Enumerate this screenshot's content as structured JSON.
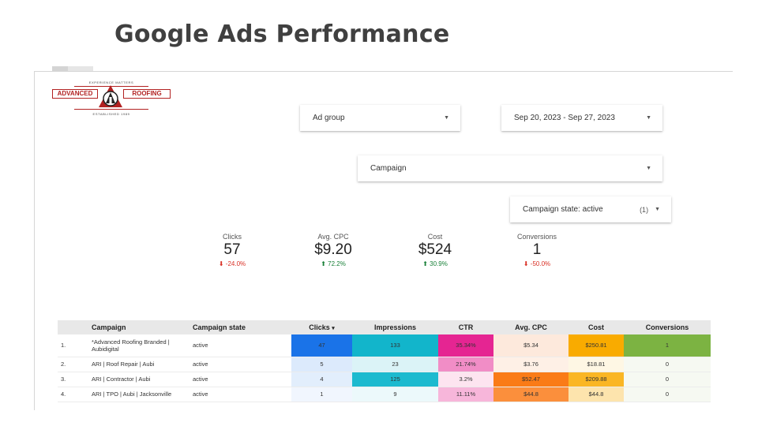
{
  "slide": {
    "title": "Google Ads Performance"
  },
  "logo": {
    "tagline": "EXPERIENCE MATTERS",
    "left_word": "ADVANCED",
    "right_word": "ROOFING",
    "established": "ESTABLISHED 1989",
    "brand_color": "#b22222"
  },
  "controls": {
    "ad_group": {
      "label": "Ad group"
    },
    "date_range": {
      "label": "Sep 20, 2023 - Sep 27, 2023"
    },
    "campaign": {
      "label": "Campaign"
    },
    "campaign_state": {
      "label": "Campaign state: active",
      "count": "(1)"
    }
  },
  "kpis": [
    {
      "label": "Clicks",
      "value": "57",
      "delta": "-24.0%",
      "direction": "down"
    },
    {
      "label": "Avg. CPC",
      "value": "$9.20",
      "delta": "72.2%",
      "direction": "up"
    },
    {
      "label": "Cost",
      "value": "$524",
      "delta": "30.9%",
      "direction": "up"
    },
    {
      "label": "Conversions",
      "value": "1",
      "delta": "-50.0%",
      "direction": "down"
    }
  ],
  "table": {
    "headers": {
      "index": "",
      "campaign": "Campaign",
      "state": "Campaign state",
      "clicks": "Clicks",
      "impressions": "Impressions",
      "ctr": "CTR",
      "avg_cpc": "Avg. CPC",
      "cost": "Cost",
      "conversions": "Conversions"
    },
    "sort_indicator": "▾",
    "rows": [
      {
        "index": "1.",
        "campaign": "*Advanced Roofing Branded | Aubidigital",
        "state": "active",
        "clicks": "47",
        "impressions": "133",
        "ctr": "35.34%",
        "avg_cpc": "$5.34",
        "cost": "$250.81",
        "conversions": "1",
        "colors": {
          "clicks": "#1a73e8",
          "impressions": "#12b5cb",
          "ctr": "#e52592",
          "avg_cpc": "#fde9dc",
          "cost": "#f9ab00",
          "conversions": "#7cb342"
        }
      },
      {
        "index": "2.",
        "campaign": "ARI | Roof Repair | Aubi",
        "state": "active",
        "clicks": "5",
        "impressions": "23",
        "ctr": "21.74%",
        "avg_cpc": "$3.76",
        "cost": "$18.81",
        "conversions": "0",
        "colors": {
          "clicks": "#dceafc",
          "impressions": "#dbf3f7",
          "ctr": "#f18dc6",
          "avg_cpc": "#fef0e6",
          "cost": "#fef7e4",
          "conversions": "#f6f9f2"
        }
      },
      {
        "index": "3.",
        "campaign": "ARI | Contractor | Aubi",
        "state": "active",
        "clicks": "4",
        "impressions": "125",
        "ctr": "3.2%",
        "avg_cpc": "$52.47",
        "cost": "$209.88",
        "conversions": "0",
        "colors": {
          "clicks": "#e2eefc",
          "impressions": "#1cbacf",
          "ctr": "#fde4f0",
          "avg_cpc": "#fa7b17",
          "cost": "#fab624",
          "conversions": "#f6f9f2"
        }
      },
      {
        "index": "4.",
        "campaign": "ARI | TPO | Aubi | Jacksonville",
        "state": "active",
        "clicks": "1",
        "impressions": "9",
        "ctr": "11.11%",
        "avg_cpc": "$44.8",
        "cost": "$44.8",
        "conversions": "0",
        "colors": {
          "clicks": "#f1f6fe",
          "impressions": "#ecf9fb",
          "ctr": "#f7b6da",
          "avg_cpc": "#fb8f3c",
          "cost": "#fde4ad",
          "conversions": "#f6f9f2"
        }
      }
    ]
  }
}
